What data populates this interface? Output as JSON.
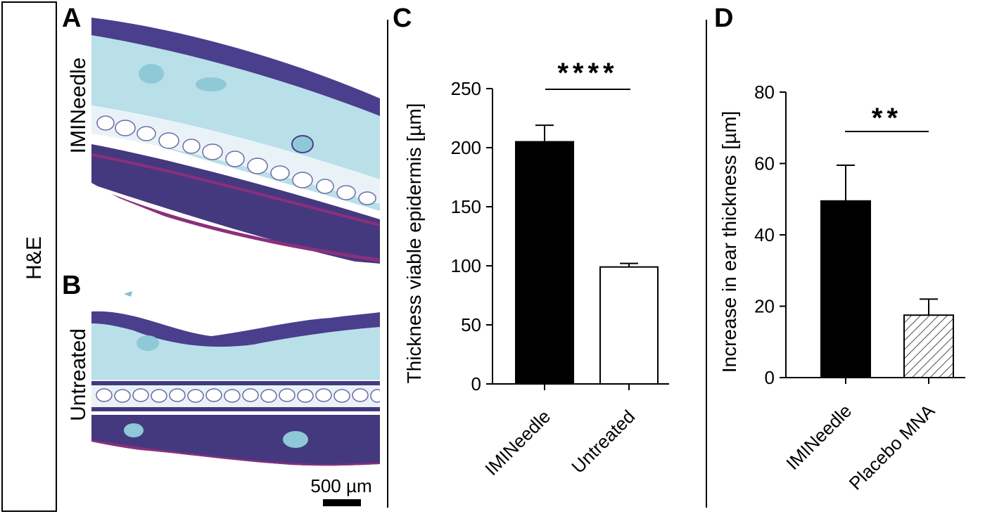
{
  "side_label": "H&E",
  "panels": {
    "A": {
      "letter": "A",
      "label": "IMINeedle"
    },
    "B": {
      "letter": "B",
      "label": "Untreated"
    },
    "C": {
      "letter": "C"
    },
    "D": {
      "letter": "D"
    }
  },
  "scale_bar": {
    "label": "500 µm"
  },
  "colors": {
    "black_bar": "#000000",
    "white_bar": "#ffffff",
    "tissue_purple": "#4a3f8c",
    "tissue_cyan": "#8fc8d6",
    "tissue_magenta": "#8a2f7c"
  },
  "chart_data": [
    {
      "panel": "C",
      "type": "bar",
      "categories": [
        "IMINeedle",
        "Untreated"
      ],
      "values": [
        205,
        99
      ],
      "errors": [
        14,
        3
      ],
      "bar_fills": [
        "solid-black",
        "white"
      ],
      "ylabel": "Thickness viable epidermis [µm]",
      "xlabel": "",
      "ylim": [
        0,
        250
      ],
      "yticks": [
        0,
        50,
        100,
        150,
        200,
        250
      ],
      "significance": {
        "text": "****",
        "between": [
          0,
          1
        ]
      }
    },
    {
      "panel": "D",
      "type": "bar",
      "categories": [
        "IMINeedle",
        "Placebo MNA"
      ],
      "values": [
        49.5,
        17.5
      ],
      "errors": [
        10,
        4.5
      ],
      "bar_fills": [
        "solid-black",
        "hatched"
      ],
      "ylabel": "Increase in ear thickness [µm]",
      "xlabel": "",
      "ylim": [
        0,
        80
      ],
      "yticks": [
        0,
        20,
        40,
        60,
        80
      ],
      "significance": {
        "text": "**",
        "between": [
          0,
          1
        ]
      }
    }
  ]
}
